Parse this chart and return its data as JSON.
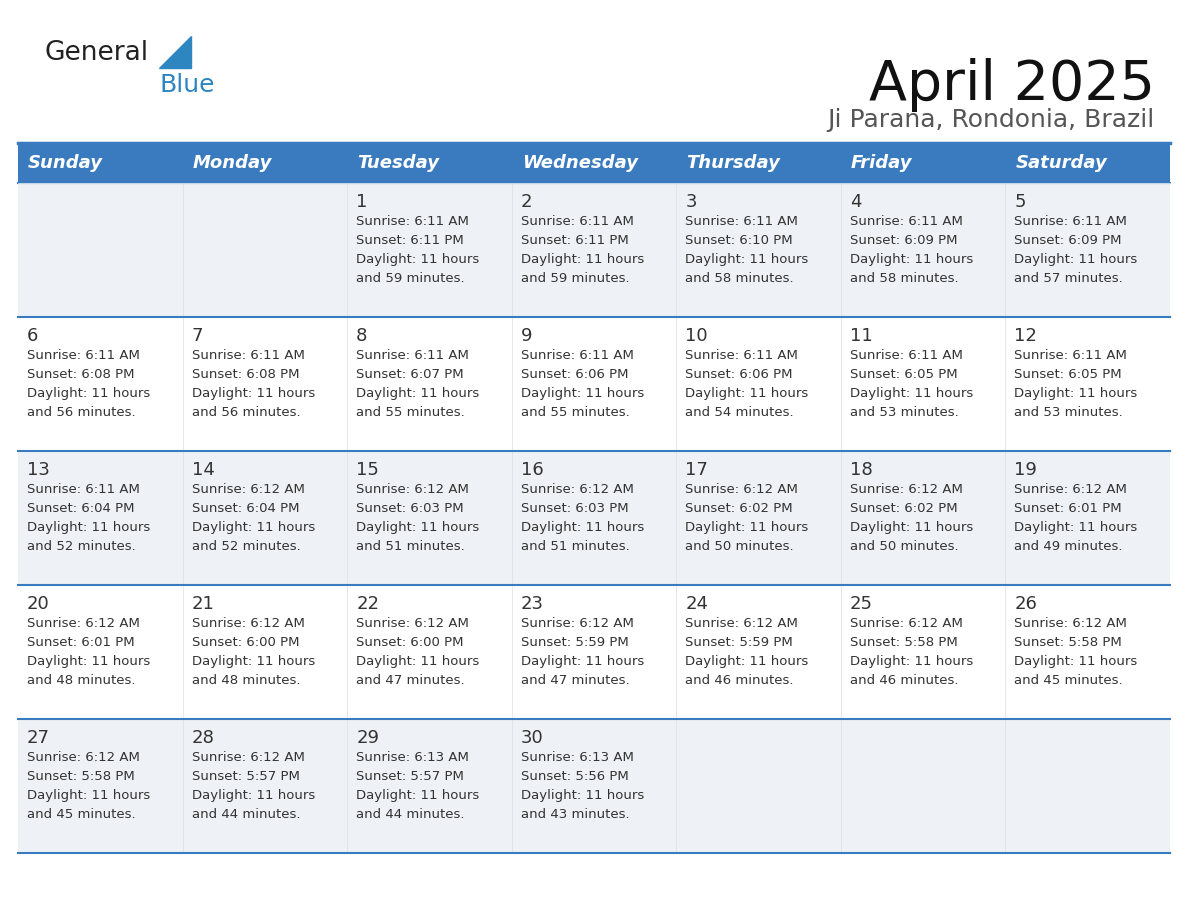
{
  "title": "April 2025",
  "subtitle": "Ji Parana, Rondonia, Brazil",
  "header_bg_color": "#3a7abf",
  "header_text_color": "#ffffff",
  "day_names": [
    "Sunday",
    "Monday",
    "Tuesday",
    "Wednesday",
    "Thursday",
    "Friday",
    "Saturday"
  ],
  "row_alt_bg": "#eef2f7",
  "row_white_bg": "#ffffff",
  "border_color": "#3a7abf",
  "cell_border_color": "#cccccc",
  "text_color": "#333333",
  "logo_general_color": "#222222",
  "logo_blue_color": "#2e86c1",
  "logo_triangle_color": "#2e86c1",
  "calendar": [
    [
      {
        "day": "",
        "sunrise": "",
        "sunset": "",
        "daylight": ""
      },
      {
        "day": "",
        "sunrise": "",
        "sunset": "",
        "daylight": ""
      },
      {
        "day": "1",
        "sunrise": "6:11 AM",
        "sunset": "6:11 PM",
        "daylight": "11 hours and 59 minutes."
      },
      {
        "day": "2",
        "sunrise": "6:11 AM",
        "sunset": "6:11 PM",
        "daylight": "11 hours and 59 minutes."
      },
      {
        "day": "3",
        "sunrise": "6:11 AM",
        "sunset": "6:10 PM",
        "daylight": "11 hours and 58 minutes."
      },
      {
        "day": "4",
        "sunrise": "6:11 AM",
        "sunset": "6:09 PM",
        "daylight": "11 hours and 58 minutes."
      },
      {
        "day": "5",
        "sunrise": "6:11 AM",
        "sunset": "6:09 PM",
        "daylight": "11 hours and 57 minutes."
      }
    ],
    [
      {
        "day": "6",
        "sunrise": "6:11 AM",
        "sunset": "6:08 PM",
        "daylight": "11 hours and 56 minutes."
      },
      {
        "day": "7",
        "sunrise": "6:11 AM",
        "sunset": "6:08 PM",
        "daylight": "11 hours and 56 minutes."
      },
      {
        "day": "8",
        "sunrise": "6:11 AM",
        "sunset": "6:07 PM",
        "daylight": "11 hours and 55 minutes."
      },
      {
        "day": "9",
        "sunrise": "6:11 AM",
        "sunset": "6:06 PM",
        "daylight": "11 hours and 55 minutes."
      },
      {
        "day": "10",
        "sunrise": "6:11 AM",
        "sunset": "6:06 PM",
        "daylight": "11 hours and 54 minutes."
      },
      {
        "day": "11",
        "sunrise": "6:11 AM",
        "sunset": "6:05 PM",
        "daylight": "11 hours and 53 minutes."
      },
      {
        "day": "12",
        "sunrise": "6:11 AM",
        "sunset": "6:05 PM",
        "daylight": "11 hours and 53 minutes."
      }
    ],
    [
      {
        "day": "13",
        "sunrise": "6:11 AM",
        "sunset": "6:04 PM",
        "daylight": "11 hours and 52 minutes."
      },
      {
        "day": "14",
        "sunrise": "6:12 AM",
        "sunset": "6:04 PM",
        "daylight": "11 hours and 52 minutes."
      },
      {
        "day": "15",
        "sunrise": "6:12 AM",
        "sunset": "6:03 PM",
        "daylight": "11 hours and 51 minutes."
      },
      {
        "day": "16",
        "sunrise": "6:12 AM",
        "sunset": "6:03 PM",
        "daylight": "11 hours and 51 minutes."
      },
      {
        "day": "17",
        "sunrise": "6:12 AM",
        "sunset": "6:02 PM",
        "daylight": "11 hours and 50 minutes."
      },
      {
        "day": "18",
        "sunrise": "6:12 AM",
        "sunset": "6:02 PM",
        "daylight": "11 hours and 50 minutes."
      },
      {
        "day": "19",
        "sunrise": "6:12 AM",
        "sunset": "6:01 PM",
        "daylight": "11 hours and 49 minutes."
      }
    ],
    [
      {
        "day": "20",
        "sunrise": "6:12 AM",
        "sunset": "6:01 PM",
        "daylight": "11 hours and 48 minutes."
      },
      {
        "day": "21",
        "sunrise": "6:12 AM",
        "sunset": "6:00 PM",
        "daylight": "11 hours and 48 minutes."
      },
      {
        "day": "22",
        "sunrise": "6:12 AM",
        "sunset": "6:00 PM",
        "daylight": "11 hours and 47 minutes."
      },
      {
        "day": "23",
        "sunrise": "6:12 AM",
        "sunset": "5:59 PM",
        "daylight": "11 hours and 47 minutes."
      },
      {
        "day": "24",
        "sunrise": "6:12 AM",
        "sunset": "5:59 PM",
        "daylight": "11 hours and 46 minutes."
      },
      {
        "day": "25",
        "sunrise": "6:12 AM",
        "sunset": "5:58 PM",
        "daylight": "11 hours and 46 minutes."
      },
      {
        "day": "26",
        "sunrise": "6:12 AM",
        "sunset": "5:58 PM",
        "daylight": "11 hours and 45 minutes."
      }
    ],
    [
      {
        "day": "27",
        "sunrise": "6:12 AM",
        "sunset": "5:58 PM",
        "daylight": "11 hours and 45 minutes."
      },
      {
        "day": "28",
        "sunrise": "6:12 AM",
        "sunset": "5:57 PM",
        "daylight": "11 hours and 44 minutes."
      },
      {
        "day": "29",
        "sunrise": "6:13 AM",
        "sunset": "5:57 PM",
        "daylight": "11 hours and 44 minutes."
      },
      {
        "day": "30",
        "sunrise": "6:13 AM",
        "sunset": "5:56 PM",
        "daylight": "11 hours and 43 minutes."
      },
      {
        "day": "",
        "sunrise": "",
        "sunset": "",
        "daylight": ""
      },
      {
        "day": "",
        "sunrise": "",
        "sunset": "",
        "daylight": ""
      },
      {
        "day": "",
        "sunrise": "",
        "sunset": "",
        "daylight": ""
      }
    ]
  ]
}
